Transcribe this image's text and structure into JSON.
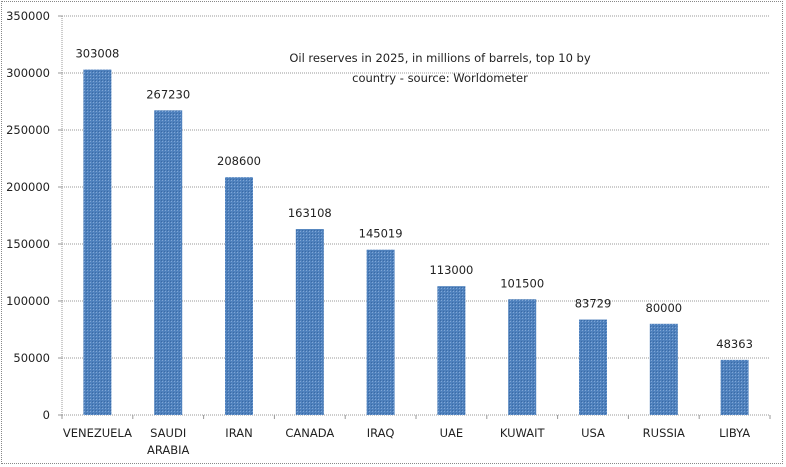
{
  "chart_data": {
    "type": "bar",
    "title": "Oil reserves in 2025, in millions of barrels, top 10 by country - source: Worldometer",
    "title_lines": [
      "Oil reserves in 2025, in millions of barrels, top 10 by",
      "country - source: Worldometer"
    ],
    "categories": [
      "VENEZUELA",
      "SAUDI ARABIA",
      "IRAN",
      "CANADA",
      "IRAQ",
      "UAE",
      "KUWAIT",
      "USA",
      "RUSSIA",
      "LIBYA"
    ],
    "values": [
      303008,
      267230,
      208600,
      163108,
      145019,
      113000,
      101500,
      83729,
      80000,
      48363
    ],
    "ylim": [
      0,
      350000
    ],
    "yticks": [
      0,
      50000,
      100000,
      150000,
      200000,
      250000,
      300000,
      350000
    ],
    "grid": true,
    "legend": "none",
    "bar_color": "#4f81bd",
    "xlabel": "",
    "ylabel": ""
  }
}
